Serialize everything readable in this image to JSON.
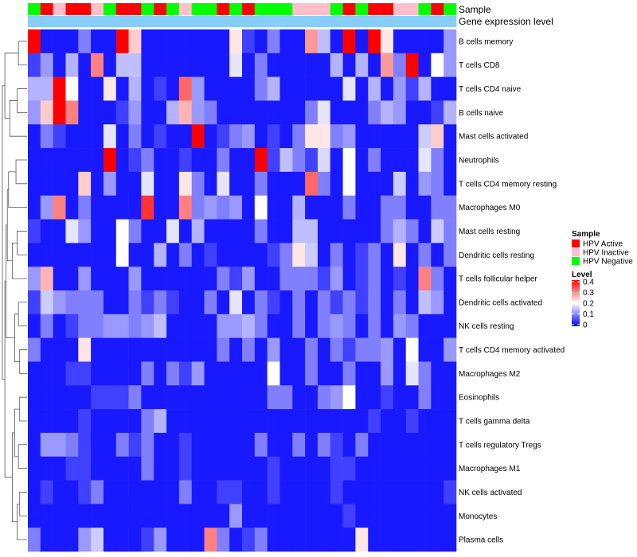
{
  "chart_data": {
    "type": "heatmap",
    "title": "",
    "n_samples": 34,
    "annotation_labels": {
      "sample": "Sample",
      "expression": "Gene expression level"
    },
    "sample_groups": [
      "Negative",
      "Active",
      "Inactive",
      "Active",
      "Active",
      "Inactive",
      "Negative",
      "Active",
      "Active",
      "Negative",
      "Active",
      "Negative",
      "Inactive",
      "Negative",
      "Negative",
      "Active",
      "Negative",
      "Active",
      "Negative",
      "Negative",
      "Negative",
      "Inactive",
      "Inactive",
      "Inactive",
      "Negative",
      "Active",
      "Negative",
      "Active",
      "Active",
      "Inactive",
      "Inactive",
      "Negative",
      "Active",
      "Negative"
    ],
    "rows": [
      {
        "name": "B cells memory",
        "values": [
          0.4,
          0.02,
          0.02,
          0.02,
          0.1,
          0.02,
          0.02,
          0.4,
          0.24,
          0.02,
          0.02,
          0.02,
          0.02,
          0.02,
          0.02,
          0.02,
          0.22,
          0.05,
          0.02,
          0.1,
          0.02,
          0.02,
          0.28,
          0.15,
          0.02,
          0.4,
          0.02,
          0.4,
          0.22,
          0.02,
          0.02,
          0.02,
          0.02,
          0.12
        ]
      },
      {
        "name": "T cells CD8",
        "values": [
          0.05,
          0.12,
          0.02,
          0.14,
          0.02,
          0.3,
          0.02,
          0.15,
          0.15,
          0.02,
          0.02,
          0.02,
          0.02,
          0.02,
          0.02,
          0.02,
          0.18,
          0.02,
          0.1,
          0.02,
          0.02,
          0.02,
          0.02,
          0.02,
          0.14,
          0.02,
          0.14,
          0.02,
          0.28,
          0.1,
          0.4,
          0.02,
          0.2,
          0.12
        ]
      },
      {
        "name": "T cells CD4 naive",
        "values": [
          0.14,
          0.14,
          0.4,
          0.2,
          0.02,
          0.02,
          0.22,
          0.02,
          0.14,
          0.02,
          0.05,
          0.02,
          0.32,
          0.12,
          0.02,
          0.02,
          0.02,
          0.02,
          0.1,
          0.14,
          0.02,
          0.02,
          0.02,
          0.02,
          0.02,
          0.18,
          0.02,
          0.14,
          0.02,
          0.12,
          0.05,
          0.14,
          0.02,
          0.02
        ]
      },
      {
        "name": "B cells naive",
        "values": [
          0.12,
          0.24,
          0.4,
          0.3,
          0.02,
          0.02,
          0.02,
          0.05,
          0.12,
          0.02,
          0.02,
          0.14,
          0.26,
          0.12,
          0.1,
          0.02,
          0.02,
          0.02,
          0.02,
          0.02,
          0.02,
          0.02,
          0.1,
          0.18,
          0.02,
          0.02,
          0.02,
          0.1,
          0.14,
          0.12,
          0.02,
          0.02,
          0.05,
          0.14
        ]
      },
      {
        "name": "Mast cells activated",
        "values": [
          0.02,
          0.1,
          0.05,
          0.02,
          0.02,
          0.02,
          0.18,
          0.02,
          0.1,
          0.02,
          0.05,
          0.02,
          0.02,
          0.4,
          0.02,
          0.05,
          0.1,
          0.12,
          0.02,
          0.05,
          0.02,
          0.1,
          0.22,
          0.22,
          0.1,
          0.12,
          0.02,
          0.02,
          0.02,
          0.02,
          0.02,
          0.16,
          0.24,
          0.02
        ]
      },
      {
        "name": "Neutrophils",
        "values": [
          0.02,
          0.02,
          0.02,
          0.02,
          0.02,
          0.02,
          0.4,
          0.02,
          0.05,
          0.1,
          0.02,
          0.02,
          0.05,
          0.02,
          0.02,
          0.1,
          0.02,
          0.02,
          0.4,
          0.05,
          0.15,
          0.1,
          0.05,
          0.17,
          0.02,
          0.2,
          0.02,
          0.1,
          0.02,
          0.02,
          0.02,
          0.18,
          0.1,
          0.02
        ]
      },
      {
        "name": "T cells CD4 memory resting",
        "values": [
          0.02,
          0.02,
          0.02,
          0.02,
          0.24,
          0.02,
          0.12,
          0.02,
          0.02,
          0.18,
          0.02,
          0.02,
          0.22,
          0.1,
          0.02,
          0.18,
          0.02,
          0.02,
          0.1,
          0.02,
          0.02,
          0.02,
          0.32,
          0.1,
          0.02,
          0.2,
          0.02,
          0.02,
          0.02,
          0.16,
          0.02,
          0.12,
          0.1,
          0.02
        ]
      },
      {
        "name": "Macrophages M0",
        "values": [
          0.02,
          0.12,
          0.3,
          0.02,
          0.1,
          0.02,
          0.02,
          0.02,
          0.02,
          0.36,
          0.02,
          0.02,
          0.3,
          0.1,
          0.12,
          0.1,
          0.12,
          0.02,
          0.2,
          0.02,
          0.02,
          0.14,
          0.02,
          0.02,
          0.02,
          0.1,
          0.02,
          0.02,
          0.1,
          0.1,
          0.02,
          0.02,
          0.1,
          0.1
        ]
      },
      {
        "name": "Mast cells resting",
        "values": [
          0.05,
          0.02,
          0.02,
          0.18,
          0.12,
          0.02,
          0.02,
          0.2,
          0.1,
          0.02,
          0.02,
          0.18,
          0.02,
          0.14,
          0.02,
          0.02,
          0.02,
          0.02,
          0.1,
          0.02,
          0.02,
          0.15,
          0.15,
          0.02,
          0.02,
          0.02,
          0.02,
          0.02,
          0.1,
          0.14,
          0.1,
          0.02,
          0.16,
          0.1
        ]
      },
      {
        "name": "Dendritic cells resting",
        "values": [
          0.02,
          0.02,
          0.02,
          0.02,
          0.02,
          0.02,
          0.02,
          0.2,
          0.02,
          0.02,
          0.14,
          0.02,
          0.1,
          0.02,
          0.05,
          0.02,
          0.02,
          0.02,
          0.02,
          0.05,
          0.1,
          0.22,
          0.16,
          0.02,
          0.1,
          0.02,
          0.05,
          0.1,
          0.02,
          0.22,
          0.02,
          0.1,
          0.02,
          0.1
        ]
      },
      {
        "name": "T cells follicular helper",
        "values": [
          0.12,
          0.26,
          0.02,
          0.02,
          0.12,
          0.02,
          0.02,
          0.02,
          0.12,
          0.02,
          0.02,
          0.02,
          0.02,
          0.02,
          0.02,
          0.1,
          0.05,
          0.12,
          0.02,
          0.02,
          0.1,
          0.1,
          0.1,
          0.05,
          0.12,
          0.02,
          0.05,
          0.1,
          0.02,
          0.05,
          0.02,
          0.3,
          0.1,
          0.02
        ]
      },
      {
        "name": "Dendritic cells activated",
        "values": [
          0.05,
          0.16,
          0.12,
          0.1,
          0.1,
          0.1,
          0.02,
          0.02,
          0.1,
          0.05,
          0.1,
          0.05,
          0.02,
          0.02,
          0.1,
          0.02,
          0.18,
          0.02,
          0.1,
          0.05,
          0.02,
          0.1,
          0.02,
          0.1,
          0.05,
          0.1,
          0.05,
          0.1,
          0.02,
          0.1,
          0.02,
          0.15,
          0.12,
          0.02
        ]
      },
      {
        "name": "NK cells resting",
        "values": [
          0.02,
          0.1,
          0.02,
          0.05,
          0.1,
          0.1,
          0.12,
          0.12,
          0.1,
          0.12,
          0.15,
          0.02,
          0.02,
          0.02,
          0.02,
          0.12,
          0.12,
          0.14,
          0.1,
          0.02,
          0.02,
          0.1,
          0.02,
          0.1,
          0.12,
          0.1,
          0.02,
          0.1,
          0.02,
          0.12,
          0.1,
          0.02,
          0.02,
          0.02
        ]
      },
      {
        "name": "T cells CD4 memory activated",
        "values": [
          0.1,
          0.02,
          0.02,
          0.02,
          0.22,
          0.02,
          0.02,
          0.02,
          0.02,
          0.02,
          0.02,
          0.02,
          0.02,
          0.02,
          0.02,
          0.1,
          0.02,
          0.1,
          0.02,
          0.12,
          0.02,
          0.02,
          0.1,
          0.02,
          0.1,
          0.05,
          0.1,
          0.1,
          0.12,
          0.02,
          0.2,
          0.02,
          0.02,
          0.12
        ]
      },
      {
        "name": "Macrophages M2",
        "values": [
          0.02,
          0.02,
          0.02,
          0.05,
          0.05,
          0.02,
          0.02,
          0.02,
          0.02,
          0.1,
          0.02,
          0.1,
          0.05,
          0.12,
          0.02,
          0.02,
          0.02,
          0.02,
          0.02,
          0.2,
          0.02,
          0.02,
          0.1,
          0.02,
          0.02,
          0.1,
          0.02,
          0.02,
          0.12,
          0.02,
          0.18,
          0.1,
          0.02,
          0.02
        ]
      },
      {
        "name": "Eosinophils",
        "values": [
          0.02,
          0.02,
          0.02,
          0.02,
          0.02,
          0.05,
          0.05,
          0.05,
          0.1,
          0.02,
          0.02,
          0.02,
          0.02,
          0.02,
          0.02,
          0.02,
          0.02,
          0.02,
          0.02,
          0.1,
          0.1,
          0.02,
          0.02,
          0.1,
          0.12,
          0.2,
          0.02,
          0.02,
          0.05,
          0.02,
          0.02,
          0.1,
          0.02,
          0.02
        ]
      },
      {
        "name": "T cells gamma delta",
        "values": [
          0.02,
          0.02,
          0.02,
          0.02,
          0.05,
          0.02,
          0.02,
          0.02,
          0.02,
          0.1,
          0.14,
          0.02,
          0.02,
          0.02,
          0.02,
          0.02,
          0.02,
          0.02,
          0.02,
          0.02,
          0.02,
          0.02,
          0.02,
          0.02,
          0.02,
          0.02,
          0.02,
          0.05,
          0.02,
          0.02,
          0.05,
          0.02,
          0.02,
          0.02
        ]
      },
      {
        "name": "T cells regulatory  Tregs",
        "values": [
          0.02,
          0.12,
          0.12,
          0.1,
          0.05,
          0.02,
          0.02,
          0.1,
          0.05,
          0.1,
          0.02,
          0.02,
          0.05,
          0.02,
          0.02,
          0.02,
          0.02,
          0.02,
          0.1,
          0.02,
          0.02,
          0.1,
          0.02,
          0.1,
          0.05,
          0.02,
          0.1,
          0.02,
          0.02,
          0.02,
          0.02,
          0.02,
          0.02,
          0.02
        ]
      },
      {
        "name": "Macrophages M1",
        "values": [
          0.02,
          0.02,
          0.02,
          0.05,
          0.05,
          0.02,
          0.02,
          0.02,
          0.02,
          0.1,
          0.02,
          0.02,
          0.05,
          0.02,
          0.02,
          0.02,
          0.02,
          0.02,
          0.02,
          0.05,
          0.02,
          0.02,
          0.02,
          0.02,
          0.05,
          0.05,
          0.02,
          0.02,
          0.02,
          0.02,
          0.02,
          0.02,
          0.02,
          0.02
        ]
      },
      {
        "name": "NK cells activated",
        "values": [
          0.02,
          0.05,
          0.02,
          0.02,
          0.05,
          0.1,
          0.02,
          0.02,
          0.02,
          0.02,
          0.02,
          0.02,
          0.1,
          0.02,
          0.02,
          0.05,
          0.05,
          0.02,
          0.02,
          0.05,
          0.02,
          0.02,
          0.02,
          0.02,
          0.05,
          0.02,
          0.02,
          0.02,
          0.02,
          0.02,
          0.02,
          0.02,
          0.02,
          0.05
        ]
      },
      {
        "name": "Monocytes",
        "values": [
          0.02,
          0.02,
          0.02,
          0.02,
          0.02,
          0.02,
          0.02,
          0.02,
          0.02,
          0.02,
          0.02,
          0.02,
          0.02,
          0.02,
          0.02,
          0.02,
          0.12,
          0.02,
          0.02,
          0.02,
          0.02,
          0.02,
          0.02,
          0.02,
          0.02,
          0.05,
          0.02,
          0.02,
          0.02,
          0.02,
          0.02,
          0.02,
          0.02,
          0.02
        ]
      },
      {
        "name": "Plasma cells",
        "values": [
          0.1,
          0.02,
          0.02,
          0.02,
          0.12,
          0.16,
          0.02,
          0.02,
          0.02,
          0.05,
          0.12,
          0.02,
          0.02,
          0.02,
          0.3,
          0.1,
          0.02,
          0.05,
          0.1,
          0.02,
          0.02,
          0.02,
          0.02,
          0.02,
          0.02,
          0.02,
          0.22,
          0.02,
          0.02,
          0.02,
          0.02,
          0.02,
          0.02,
          0.02
        ]
      }
    ],
    "color_scale": {
      "min": 0,
      "max": 0.4,
      "low": "#0000ff",
      "mid": "#ffffff",
      "high": "#ff0000",
      "mid_value": 0.2
    },
    "group_colors": {
      "Active": "#ff0000",
      "Inactive": "#ffc0cb",
      "Negative": "#00ff00"
    },
    "expression_color": "#87cefa",
    "legend": {
      "sample_title": "Sample",
      "sample_entries": [
        {
          "label": "HPV Active",
          "group": "Active"
        },
        {
          "label": "HPV Inactive",
          "group": "Inactive"
        },
        {
          "label": "HPV Negative",
          "group": "Negative"
        }
      ],
      "level_title": "Level",
      "level_ticks": [
        {
          "value": 0.4,
          "label": "0.4"
        },
        {
          "value": 0.3,
          "label": "0.3"
        },
        {
          "value": 0.2,
          "label": "0.2"
        },
        {
          "value": 0.1,
          "label": "0.1"
        },
        {
          "value": 0.0,
          "label": "0"
        }
      ]
    },
    "dendrogram": {
      "order": [
        0,
        1,
        2,
        3,
        4,
        5,
        6,
        7,
        8,
        9,
        10,
        11,
        12,
        13,
        14,
        15,
        16,
        17,
        18,
        19,
        20,
        21
      ],
      "merges": [
        [
          0,
          1,
          0.35
        ],
        [
          2,
          3,
          0.4
        ],
        [
          -2,
          4,
          0.7
        ],
        [
          5,
          6,
          0.45
        ],
        [
          -4,
          7,
          0.75
        ],
        [
          8,
          9,
          0.4
        ],
        [
          -6,
          10,
          0.6
        ],
        [
          -5,
          -7,
          0.8
        ],
        [
          11,
          12,
          0.35
        ],
        [
          13,
          14,
          0.3
        ],
        [
          -9,
          -10,
          0.5
        ],
        [
          -8,
          -11,
          0.85
        ],
        [
          15,
          16,
          0.3
        ],
        [
          17,
          18,
          0.35
        ],
        [
          -13,
          -14,
          0.5
        ],
        [
          19,
          20,
          0.3
        ],
        [
          -16,
          21,
          0.4
        ],
        [
          -15,
          -17,
          0.6
        ],
        [
          -12,
          -18,
          0.9
        ],
        [
          -1,
          -3,
          0.9
        ],
        [
          -20,
          -19,
          1.0
        ]
      ]
    }
  }
}
